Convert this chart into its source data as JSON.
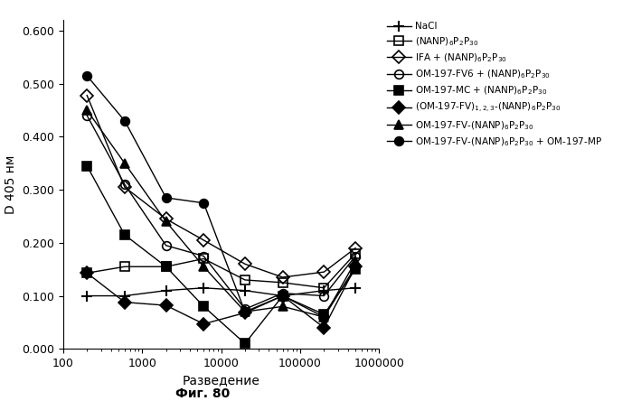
{
  "title": "",
  "xlabel": "Разведение",
  "ylabel": "D 405 нм",
  "subtitle": "Фиг. 80",
  "xlim": [
    100,
    1000000
  ],
  "ylim": [
    0.0,
    0.62
  ],
  "yticks": [
    0.0,
    0.1,
    0.2,
    0.3,
    0.4,
    0.5,
    0.6
  ],
  "series": [
    {
      "label": "NaCl",
      "x": [
        200,
        600,
        2000,
        6000,
        20000,
        60000,
        200000,
        500000
      ],
      "y": [
        0.1,
        0.1,
        0.11,
        0.115,
        0.11,
        0.1,
        0.11,
        0.115
      ],
      "color": "black",
      "marker": "+",
      "linestyle": "-",
      "markersize": 8,
      "fillstyle": "full",
      "markeredgewidth": 1.5
    },
    {
      "label": "(NANP)$_6$P$_2$P$_{30}$",
      "x": [
        200,
        600,
        2000,
        6000,
        20000,
        60000,
        200000,
        500000
      ],
      "y": [
        0.143,
        0.155,
        0.155,
        0.17,
        0.13,
        0.125,
        0.115,
        0.18
      ],
      "color": "black",
      "marker": "s",
      "linestyle": "-",
      "markersize": 7,
      "fillstyle": "none",
      "markeredgewidth": 1.2
    },
    {
      "label": "IFA + (NANP)$_6$P$_2$P$_{30}$",
      "x": [
        200,
        600,
        2000,
        6000,
        20000,
        60000,
        200000,
        500000
      ],
      "y": [
        0.478,
        0.305,
        0.245,
        0.205,
        0.16,
        0.135,
        0.145,
        0.19
      ],
      "color": "black",
      "marker": "D",
      "linestyle": "-",
      "markersize": 7,
      "fillstyle": "none",
      "markeredgewidth": 1.2
    },
    {
      "label": "OM-197-FV6 + (NANP)$_6$P$_2$P$_{30}$",
      "x": [
        200,
        600,
        2000,
        6000,
        20000,
        60000,
        200000,
        500000
      ],
      "y": [
        0.44,
        0.31,
        0.195,
        0.175,
        0.075,
        0.105,
        0.1,
        0.175
      ],
      "color": "black",
      "marker": "o",
      "linestyle": "-",
      "markersize": 7,
      "fillstyle": "none",
      "markeredgewidth": 1.2
    },
    {
      "label": "OM-197-MC + (NANP)$_6$P$_2$P$_{30}$",
      "x": [
        200,
        600,
        2000,
        6000,
        20000,
        60000,
        200000,
        500000
      ],
      "y": [
        0.345,
        0.215,
        0.155,
        0.08,
        0.01,
        0.1,
        0.065,
        0.15
      ],
      "color": "black",
      "marker": "s",
      "linestyle": "-",
      "markersize": 7,
      "fillstyle": "full",
      "markeredgewidth": 1.2
    },
    {
      "label": "(OM-197-FV)$_{1,2,3}$-(NANP)$_6$P$_2$P$_{30}$",
      "x": [
        200,
        600,
        2000,
        6000,
        20000,
        60000,
        200000,
        500000
      ],
      "y": [
        0.143,
        0.088,
        0.082,
        0.047,
        0.068,
        0.1,
        0.04,
        0.155
      ],
      "color": "black",
      "marker": "D",
      "linestyle": "-",
      "markersize": 7,
      "fillstyle": "full",
      "markeredgewidth": 1.2
    },
    {
      "label": "OM-197-FV-(NANP)$_6$P$_2$P$_{30}$",
      "x": [
        200,
        600,
        2000,
        6000,
        20000,
        60000,
        200000,
        500000
      ],
      "y": [
        0.45,
        0.35,
        0.24,
        0.155,
        0.07,
        0.08,
        0.06,
        0.165
      ],
      "color": "black",
      "marker": "^",
      "linestyle": "-",
      "markersize": 7,
      "fillstyle": "full",
      "markeredgewidth": 1.2
    },
    {
      "label": "OM-197-FV-(NANP)$_6$P$_2$P$_{30}$ + OM-197-MP",
      "x": [
        200,
        600,
        2000,
        6000,
        20000,
        60000,
        200000,
        500000
      ],
      "y": [
        0.515,
        0.43,
        0.285,
        0.275,
        0.07,
        0.1,
        0.06,
        0.155
      ],
      "color": "black",
      "marker": "o",
      "linestyle": "-",
      "markersize": 7,
      "fillstyle": "full",
      "markeredgewidth": 1.2
    }
  ],
  "background_color": "#ffffff",
  "legend_fontsize": 7.5,
  "axis_fontsize": 10,
  "tick_fontsize": 9
}
